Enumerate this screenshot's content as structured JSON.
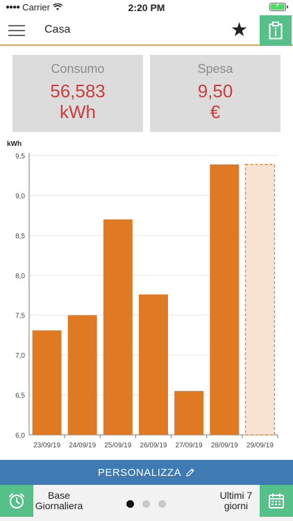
{
  "status_bar": {
    "carrier": "Carrier",
    "time": "2:20 PM"
  },
  "nav": {
    "title": "Casa",
    "menu_icon": "hamburger-menu-icon",
    "favorite_icon": "star-icon",
    "action_icon": "clipboard-info-icon"
  },
  "cards": {
    "consumo": {
      "label": "Consumo",
      "value_line1": "56,583",
      "value_line2": "kWh"
    },
    "spesa": {
      "label": "Spesa",
      "value_line1": "9,50",
      "value_line2": "€"
    }
  },
  "colors": {
    "accent_green": "#56c089",
    "bar_orange": "#e07a22",
    "projected_fill": "#f8e3d2",
    "card_value_red": "#cc3d3d",
    "banner_blue": "#3f7ab3"
  },
  "chart_data": {
    "type": "bar",
    "ylabel": "kWh",
    "ylim": [
      6.0,
      9.5
    ],
    "yticks": [
      "6,0",
      "6,5",
      "7,0",
      "7,5",
      "8,0",
      "8,5",
      "9,0",
      "9,5"
    ],
    "ytick_values": [
      6.0,
      6.5,
      7.0,
      7.5,
      8.0,
      8.5,
      9.0,
      9.5
    ],
    "categories": [
      "23/09/19",
      "24/09/19",
      "25/09/19",
      "26/09/19",
      "27/09/19",
      "28/09/19",
      "29/09/19"
    ],
    "values": [
      7.31,
      7.5,
      8.7,
      7.76,
      6.55,
      9.39,
      9.39
    ],
    "projected": [
      false,
      false,
      false,
      false,
      false,
      false,
      true
    ],
    "grid": true
  },
  "banner": {
    "label": "PERSONALIZZA",
    "icon": "pencil-icon"
  },
  "bottom": {
    "left_icon": "alarm-clock-icon",
    "left_line1": "Base",
    "left_line2": "Giornaliera",
    "right_line1": "Ultimi 7",
    "right_line2": "giorni",
    "right_icon": "calendar-icon",
    "page_count": 3,
    "active_page": 1
  }
}
